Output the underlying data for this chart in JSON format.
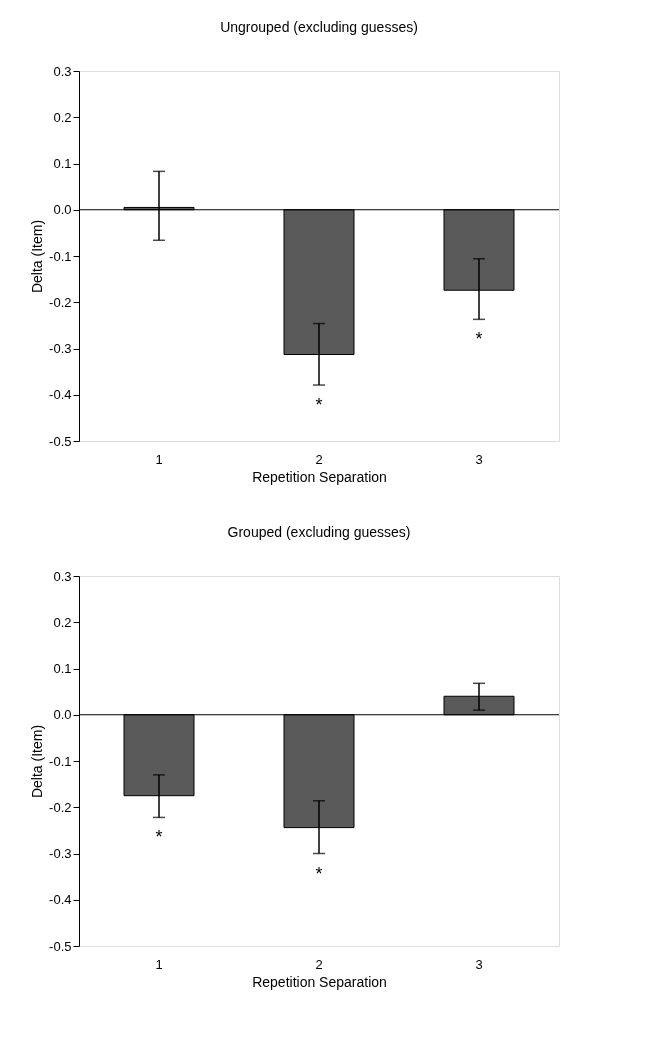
{
  "chart_data": [
    {
      "type": "bar",
      "title": "Ungrouped (excluding guesses)",
      "xlabel": "Repetition Separation",
      "ylabel": "Delta (Item)",
      "categories": [
        "1",
        "2",
        "3"
      ],
      "values": [
        0.005,
        -0.313,
        -0.174
      ],
      "color": "#5a5a5a",
      "errors": [
        [
          -0.066,
          0.083
        ],
        [
          -0.379,
          -0.246
        ],
        [
          -0.237,
          -0.106
        ]
      ],
      "ylim": [
        -0.5,
        0.3
      ],
      "yticks": [
        {
          "value": -0.5,
          "label": "-0.5"
        },
        {
          "value": -0.4,
          "label": "-0.4"
        },
        {
          "value": -0.3,
          "label": "-0.3"
        },
        {
          "value": -0.2,
          "label": "-0.2"
        },
        {
          "value": -0.1,
          "label": "-0.1"
        },
        {
          "value": 0,
          "label": "0.0"
        },
        0.1,
        0.2,
        0.3
      ],
      "ref_lines": [
        {
          "axis": "y",
          "value": 0,
          "color": "#000000"
        }
      ],
      "value_labels": [
        null,
        "*",
        "*"
      ],
      "grid": false
    },
    {
      "type": "bar",
      "title": "Grouped (excluding guesses)",
      "xlabel": "Repetition Separation",
      "ylabel": "Delta (Item)",
      "categories": [
        "1",
        "2",
        "3"
      ],
      "values": [
        -0.175,
        -0.244,
        0.04
      ],
      "color": "#5a5a5a",
      "errors": [
        [
          -0.222,
          -0.13
        ],
        [
          -0.3,
          -0.186
        ],
        [
          0.01,
          0.068
        ]
      ],
      "ylim": [
        -0.5,
        0.3
      ],
      "yticks": [
        {
          "value": -0.5,
          "label": "-0.5"
        },
        {
          "value": -0.4,
          "label": "-0.4"
        },
        {
          "value": -0.3,
          "label": "-0.3"
        },
        {
          "value": -0.2,
          "label": "-0.2"
        },
        {
          "value": -0.1,
          "label": "-0.1"
        },
        {
          "value": 0,
          "label": "0.0"
        },
        0.1,
        0.2,
        0.3
      ],
      "ref_lines": [
        {
          "axis": "y",
          "value": 0,
          "color": "#000000"
        }
      ],
      "value_labels": [
        "*",
        "*",
        null
      ],
      "grid": false
    }
  ]
}
